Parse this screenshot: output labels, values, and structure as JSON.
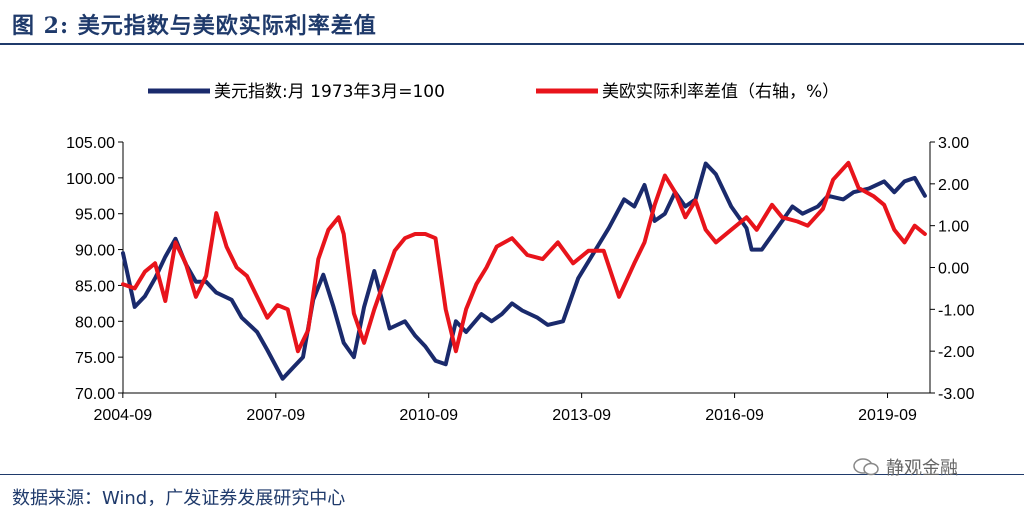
{
  "header": {
    "title": "图 2:  美元指数与美欧实际利率差值"
  },
  "footer": {
    "source": "数据来源：Wind，广发证券发展研究中心",
    "watermark": "静观金融"
  },
  "chart_data": {
    "type": "line",
    "title": "美元指数与美欧实际利率差值",
    "x_ticks": [
      "2004-09",
      "2007-09",
      "2010-09",
      "2013-09",
      "2016-09",
      "2019-09"
    ],
    "x_range": [
      2004.67,
      2020.5
    ],
    "y_left": {
      "ticks": [
        "105.00",
        "100.00",
        "95.00",
        "90.00",
        "85.00",
        "80.00",
        "75.00",
        "70.00"
      ],
      "lim": [
        70,
        105
      ]
    },
    "y_right": {
      "ticks": [
        "3.00",
        "2.00",
        "1.00",
        "0.00",
        "-1.00",
        "-2.00",
        "-3.00"
      ],
      "lim": [
        -3,
        3
      ]
    },
    "legend": [
      "美元指数:月 1973年3月=100",
      "美欧实际利率差值（右轴，%）"
    ],
    "colors": {
      "dxy": "#1a2a6c",
      "spread": "#e8141b",
      "axis": "#000000"
    },
    "series": [
      {
        "name": "美元指数:月 1973年3月=100",
        "axis": "left",
        "x": [
          2004.67,
          2004.9,
          2005.1,
          2005.3,
          2005.5,
          2005.7,
          2005.9,
          2006.1,
          2006.3,
          2006.5,
          2006.8,
          2007.0,
          2007.3,
          2007.5,
          2007.8,
          2008.0,
          2008.2,
          2008.4,
          2008.6,
          2008.8,
          2009.0,
          2009.2,
          2009.4,
          2009.6,
          2009.9,
          2010.2,
          2010.4,
          2010.6,
          2010.8,
          2011.0,
          2011.2,
          2011.4,
          2011.7,
          2011.9,
          2012.1,
          2012.3,
          2012.5,
          2012.8,
          2013.0,
          2013.3,
          2013.6,
          2013.9,
          2014.2,
          2014.5,
          2014.7,
          2014.9,
          2015.1,
          2015.3,
          2015.5,
          2015.7,
          2015.9,
          2016.1,
          2016.3,
          2016.6,
          2016.9,
          2017.0,
          2017.2,
          2017.5,
          2017.8,
          2018.0,
          2018.3,
          2018.5,
          2018.8,
          2019.0,
          2019.3,
          2019.6,
          2019.8,
          2020.0,
          2020.2,
          2020.4
        ],
        "y": [
          89.5,
          82,
          83.5,
          86,
          89,
          91.5,
          88,
          85.5,
          85.5,
          84,
          83,
          80.5,
          78.5,
          76,
          72,
          73.5,
          75,
          83,
          86.5,
          82,
          77,
          75,
          82,
          87,
          79,
          80,
          78,
          76.5,
          74.5,
          74,
          80,
          78.5,
          81,
          80,
          81,
          82.5,
          81.5,
          80.5,
          79.5,
          80,
          86,
          89.5,
          93,
          97,
          96,
          99,
          94,
          95,
          98,
          96,
          97,
          102,
          100.5,
          96,
          93,
          90,
          90,
          93,
          96,
          95,
          96,
          97.5,
          97,
          98,
          98.5,
          99.5,
          98,
          99.5,
          100,
          97.5
        ]
      },
      {
        "name": "美欧实际利率差值（右轴，%）",
        "axis": "right",
        "x": [
          2004.67,
          2004.9,
          2005.1,
          2005.3,
          2005.5,
          2005.7,
          2005.9,
          2006.1,
          2006.3,
          2006.5,
          2006.7,
          2006.9,
          2007.1,
          2007.3,
          2007.5,
          2007.7,
          2007.9,
          2008.1,
          2008.3,
          2008.5,
          2008.7,
          2008.9,
          2009.0,
          2009.2,
          2009.4,
          2009.6,
          2009.8,
          2010.0,
          2010.2,
          2010.4,
          2010.6,
          2010.8,
          2011.0,
          2011.2,
          2011.4,
          2011.6,
          2011.8,
          2012.0,
          2012.3,
          2012.6,
          2012.9,
          2013.2,
          2013.5,
          2013.8,
          2014.1,
          2014.4,
          2014.7,
          2014.9,
          2015.1,
          2015.3,
          2015.5,
          2015.7,
          2015.9,
          2016.1,
          2016.3,
          2016.6,
          2016.9,
          2017.1,
          2017.4,
          2017.6,
          2017.9,
          2018.1,
          2018.4,
          2018.6,
          2018.9,
          2019.1,
          2019.4,
          2019.6,
          2019.8,
          2020.0,
          2020.2,
          2020.4
        ],
        "y": [
          -0.4,
          -0.5,
          -0.1,
          0.1,
          -0.8,
          0.6,
          0.1,
          -0.7,
          -0.2,
          1.3,
          0.5,
          0,
          -0.2,
          -0.7,
          -1.2,
          -0.9,
          -1.0,
          -2.0,
          -1.5,
          0.2,
          0.9,
          1.2,
          0.8,
          -1.1,
          -1.8,
          -1.0,
          -0.3,
          0.4,
          0.7,
          0.8,
          0.8,
          0.7,
          -1.0,
          -2.0,
          -1.0,
          -0.4,
          0,
          0.5,
          0.7,
          0.3,
          0.2,
          0.6,
          0.1,
          0.4,
          0.4,
          -0.7,
          0.1,
          0.6,
          1.5,
          2.2,
          1.8,
          1.2,
          1.6,
          0.9,
          0.6,
          0.9,
          1.2,
          0.9,
          1.5,
          1.2,
          1.1,
          1.0,
          1.4,
          2.1,
          2.5,
          1.9,
          1.7,
          1.5,
          0.9,
          0.6,
          1.0,
          0.8
        ]
      }
    ]
  }
}
